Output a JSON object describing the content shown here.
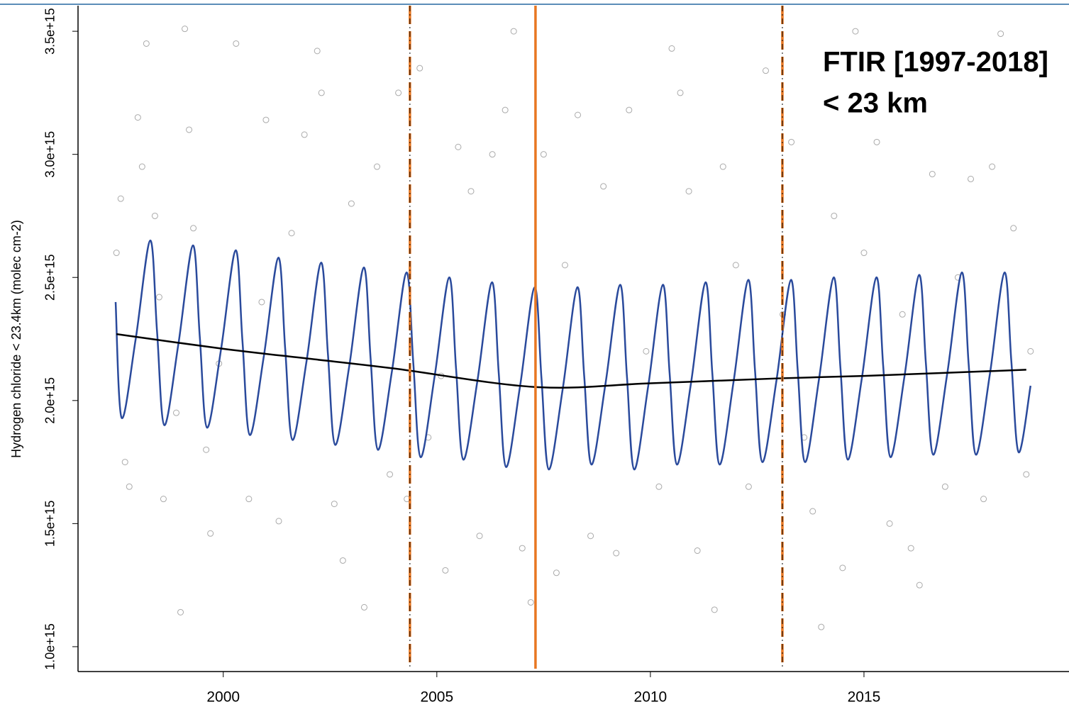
{
  "chart_data": {
    "type": "scatter",
    "y_label": "Hydrogen chloride < 23.4km (molec cm-2)",
    "annotations": [
      "FTIR [1997-2018]",
      "< 23 km"
    ],
    "xlim": [
      1996.6,
      2019.8
    ],
    "ylim": [
      899000000000000.0,
      3604000000000000.0
    ],
    "xticks": [
      2000,
      2005,
      2010,
      2015
    ],
    "yticks": [
      {
        "value": 1000000000000000.0,
        "label": "1.0e+15"
      },
      {
        "value": 1500000000000000.0,
        "label": "1.5e+15"
      },
      {
        "value": 2000000000000000.0,
        "label": "2.0e+15"
      },
      {
        "value": 2500000000000000.0,
        "label": "2.5e+15"
      },
      {
        "value": 3000000000000000.0,
        "label": "3.0e+15"
      },
      {
        "value": 3500000000000000.0,
        "label": "3.5e+15"
      }
    ],
    "vlines": [
      {
        "x": 2004.37,
        "style": "dashed"
      },
      {
        "x": 2007.31,
        "style": "solid"
      },
      {
        "x": 2013.09,
        "style": "dashed"
      }
    ],
    "vline_color": "#e87722",
    "series": [
      {
        "type": "scatter",
        "color": "#aaaaaa",
        "x": [
          1997.5,
          1997.6,
          1997.7,
          1997.8,
          1998.0,
          1998.1,
          1998.2,
          1998.4,
          1998.5,
          1998.6,
          1998.9,
          1999.0,
          1999.1,
          1999.2,
          1999.3,
          1999.6,
          1999.7,
          1999.9,
          2000.3,
          2000.6,
          2000.9,
          2001.0,
          2001.3,
          2001.6,
          2001.9,
          2002.2,
          2002.3,
          2002.6,
          2002.8,
          2003.0,
          2003.3,
          2003.6,
          2003.9,
          2004.1,
          2004.3,
          2004.6,
          2004.8,
          2005.1,
          2005.2,
          2005.5,
          2005.8,
          2006.0,
          2006.3,
          2006.6,
          2006.8,
          2007.0,
          2007.2,
          2007.5,
          2007.8,
          2008.0,
          2008.3,
          2008.6,
          2008.9,
          2009.2,
          2009.5,
          2009.9,
          2010.2,
          2010.5,
          2010.7,
          2010.9,
          2011.1,
          2011.5,
          2011.7,
          2012.0,
          2012.3,
          2012.7,
          2013.1,
          2013.3,
          2013.6,
          2013.8,
          2014.0,
          2014.3,
          2014.5,
          2014.8,
          2015.0,
          2015.3,
          2015.6,
          2015.9,
          2016.1,
          2016.3,
          2016.6,
          2016.9,
          2017.2,
          2017.5,
          2017.8,
          2018.0,
          2018.2,
          2018.5,
          2018.8,
          2018.9
        ],
        "values": [
          2600000000000000.0,
          2820000000000000.0,
          1750000000000000.0,
          1650000000000000.0,
          3150000000000000.0,
          2950000000000000.0,
          3450000000000000.0,
          2750000000000000.0,
          2420000000000000.0,
          1600000000000000.0,
          1950000000000000.0,
          1140000000000000.0,
          3510000000000000.0,
          3100000000000000.0,
          2700000000000000.0,
          1800000000000000.0,
          1460000000000000.0,
          2150000000000000.0,
          3450000000000000.0,
          1600000000000000.0,
          2400000000000000.0,
          3140000000000000.0,
          1510000000000000.0,
          2680000000000000.0,
          3080000000000000.0,
          3420000000000000.0,
          3250000000000000.0,
          1580000000000000.0,
          1350000000000000.0,
          2800000000000000.0,
          1160000000000000.0,
          2950000000000000.0,
          1700000000000000.0,
          3250000000000000.0,
          1600000000000000.0,
          3350000000000000.0,
          1850000000000000.0,
          2100000000000000.0,
          1310000000000000.0,
          3030000000000000.0,
          2850000000000000.0,
          1450000000000000.0,
          3000000000000000.0,
          3180000000000000.0,
          3500000000000000.0,
          1400000000000000.0,
          1180000000000000.0,
          3000000000000000.0,
          1300000000000000.0,
          2550000000000000.0,
          3160000000000000.0,
          1450000000000000.0,
          2870000000000000.0,
          1380000000000000.0,
          3180000000000000.0,
          2200000000000000.0,
          1650000000000000.0,
          3430000000000000.0,
          3250000000000000.0,
          2850000000000000.0,
          1390000000000000.0,
          1150000000000000.0,
          2950000000000000.0,
          2550000000000000.0,
          1650000000000000.0,
          3340000000000000.0,
          2350000000000000.0,
          3050000000000000.0,
          1850000000000000.0,
          1550000000000000.0,
          1080000000000000.0,
          2750000000000000.0,
          1320000000000000.0,
          3500000000000000.0,
          2600000000000000.0,
          3050000000000000.0,
          1500000000000000.0,
          2350000000000000.0,
          1400000000000000.0,
          1250000000000000.0,
          2920000000000000.0,
          1650000000000000.0,
          2500000000000000.0,
          2900000000000000.0,
          1600000000000000.0,
          2950000000000000.0,
          3490000000000000.0,
          2700000000000000.0,
          1700000000000000.0,
          2200000000000000.0
        ]
      },
      {
        "type": "line",
        "color": "#2a4a9c",
        "x": [
          1997.48,
          1997.62,
          1997.95,
          1998.29,
          1998.45,
          1998.62,
          1998.95,
          1999.29,
          1999.45,
          1999.62,
          1999.95,
          2000.29,
          2000.45,
          2000.62,
          2000.95,
          2001.29,
          2001.45,
          2001.62,
          2001.95,
          2002.29,
          2002.45,
          2002.62,
          2002.95,
          2003.29,
          2003.45,
          2003.62,
          2003.95,
          2004.29,
          2004.45,
          2004.62,
          2004.95,
          2005.29,
          2005.45,
          2005.62,
          2005.95,
          2006.29,
          2006.45,
          2006.62,
          2006.95,
          2007.29,
          2007.45,
          2007.62,
          2007.95,
          2008.29,
          2008.45,
          2008.62,
          2008.95,
          2009.29,
          2009.45,
          2009.62,
          2009.95,
          2010.29,
          2010.45,
          2010.62,
          2010.95,
          2011.29,
          2011.45,
          2011.62,
          2011.95,
          2012.29,
          2012.45,
          2012.62,
          2012.95,
          2013.29,
          2013.45,
          2013.62,
          2013.95,
          2014.29,
          2014.45,
          2014.62,
          2014.95,
          2015.29,
          2015.45,
          2015.62,
          2015.95,
          2016.29,
          2016.45,
          2016.62,
          2016.95,
          2017.29,
          2017.45,
          2017.62,
          2017.95,
          2018.29,
          2018.45,
          2018.62,
          2018.9
        ],
        "values": [
          2400000000000000.0,
          1930000000000000.0,
          2250000000000000.0,
          2650000000000000.0,
          2280000000000000.0,
          1900000000000000.0,
          2230000000000000.0,
          2630000000000000.0,
          2260000000000000.0,
          1890000000000000.0,
          2210000000000000.0,
          2610000000000000.0,
          2240000000000000.0,
          1860000000000000.0,
          2180000000000000.0,
          2580000000000000.0,
          2210000000000000.0,
          1840000000000000.0,
          2160000000000000.0,
          2560000000000000.0,
          2190000000000000.0,
          1820000000000000.0,
          2140000000000000.0,
          2540000000000000.0,
          2170000000000000.0,
          1800000000000000.0,
          2120000000000000.0,
          2520000000000000.0,
          2150000000000000.0,
          1770000000000000.0,
          2100000000000000.0,
          2500000000000000.0,
          2130000000000000.0,
          1760000000000000.0,
          2080000000000000.0,
          2480000000000000.0,
          2110000000000000.0,
          1730000000000000.0,
          2060000000000000.0,
          2460000000000000.0,
          2090000000000000.0,
          1720000000000000.0,
          2050000000000000.0,
          2460000000000000.0,
          2100000000000000.0,
          1740000000000000.0,
          2070000000000000.0,
          2470000000000000.0,
          2100000000000000.0,
          1720000000000000.0,
          2060000000000000.0,
          2470000000000000.0,
          2110000000000000.0,
          1740000000000000.0,
          2070000000000000.0,
          2480000000000000.0,
          2110000000000000.0,
          1740000000000000.0,
          2080000000000000.0,
          2490000000000000.0,
          2120000000000000.0,
          1750000000000000.0,
          2080000000000000.0,
          2490000000000000.0,
          2120000000000000.0,
          1750000000000000.0,
          2090000000000000.0,
          2500000000000000.0,
          2130000000000000.0,
          1760000000000000.0,
          2090000000000000.0,
          2500000000000000.0,
          2140000000000000.0,
          1770000000000000.0,
          2100000000000000.0,
          2510000000000000.0,
          2150000000000000.0,
          1780000000000000.0,
          2110000000000000.0,
          2520000000000000.0,
          2150000000000000.0,
          1780000000000000.0,
          2110000000000000.0,
          2520000000000000.0,
          2160000000000000.0,
          1790000000000000.0,
          2060000000000000.0
        ]
      },
      {
        "type": "line",
        "color": "#000000",
        "x": [
          1997.5,
          2000,
          2002,
          2004,
          2007.3,
          2010,
          2013,
          2015,
          2018.8
        ],
        "values": [
          2270000000000000.0,
          2210000000000000.0,
          2170000000000000.0,
          2130000000000000.0,
          2055000000000000.0,
          2070000000000000.0,
          2090000000000000.0,
          2100000000000000.0,
          2125000000000000.0
        ]
      }
    ]
  }
}
